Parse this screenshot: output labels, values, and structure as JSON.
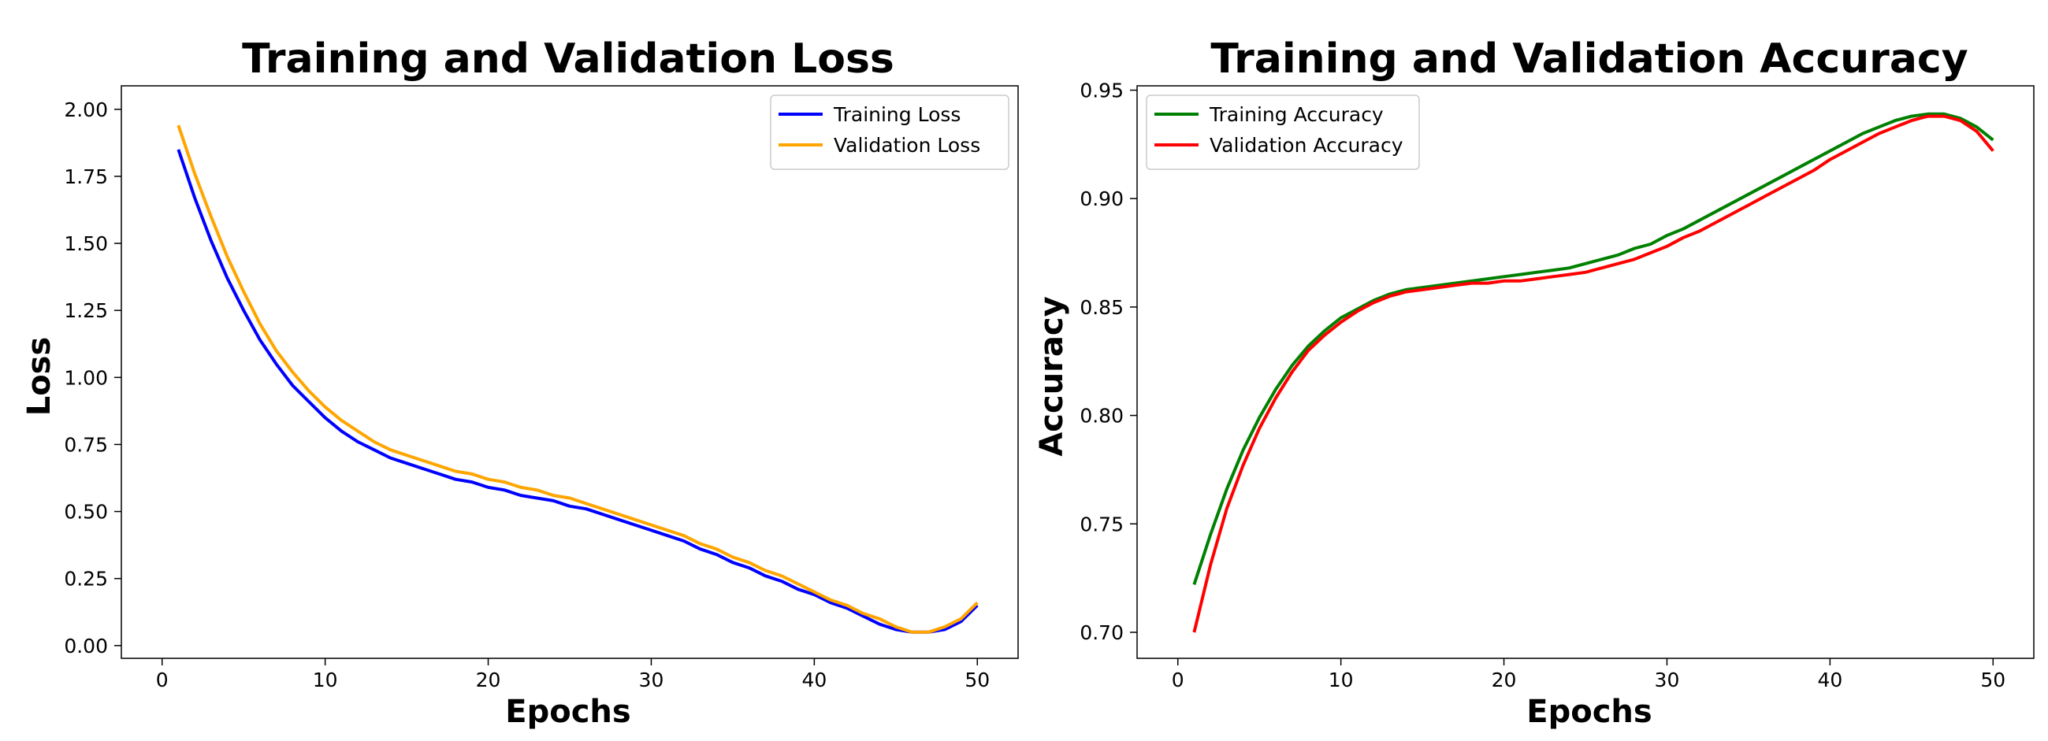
{
  "chart_data": [
    {
      "type": "line",
      "title": "Training and Validation Loss",
      "xlabel": "Epochs",
      "ylabel": "Loss",
      "xlim": [
        -2.5,
        52.5
      ],
      "ylim": [
        -0.0475,
        2.0875
      ],
      "xticks": [
        0,
        10,
        20,
        30,
        40,
        50
      ],
      "yticks": [
        0.0,
        0.25,
        0.5,
        0.75,
        1.0,
        1.25,
        1.5,
        1.75,
        2.0
      ],
      "ytick_labels": [
        "0.00",
        "0.25",
        "0.50",
        "0.75",
        "1.00",
        "1.25",
        "1.50",
        "1.75",
        "2.00"
      ],
      "legend_location": "upper right",
      "grid": false,
      "x": [
        1,
        2,
        3,
        4,
        5,
        6,
        7,
        8,
        9,
        10,
        11,
        12,
        13,
        14,
        15,
        16,
        17,
        18,
        19,
        20,
        21,
        22,
        23,
        24,
        25,
        26,
        27,
        28,
        29,
        30,
        31,
        32,
        33,
        34,
        35,
        36,
        37,
        38,
        39,
        40,
        41,
        42,
        43,
        44,
        45,
        46,
        47,
        48,
        49,
        50
      ],
      "series": [
        {
          "name": "Training Loss",
          "color": "#0000ff",
          "values": [
            1.85,
            1.67,
            1.51,
            1.37,
            1.25,
            1.14,
            1.05,
            0.97,
            0.91,
            0.85,
            0.8,
            0.76,
            0.73,
            0.7,
            0.68,
            0.66,
            0.64,
            0.62,
            0.61,
            0.59,
            0.58,
            0.56,
            0.55,
            0.54,
            0.52,
            0.51,
            0.49,
            0.47,
            0.45,
            0.43,
            0.41,
            0.39,
            0.36,
            0.34,
            0.31,
            0.29,
            0.26,
            0.24,
            0.21,
            0.19,
            0.16,
            0.14,
            0.11,
            0.08,
            0.06,
            0.05,
            0.05,
            0.06,
            0.09,
            0.15
          ]
        },
        {
          "name": "Validation Loss",
          "color": "#ffa500",
          "values": [
            1.94,
            1.76,
            1.6,
            1.45,
            1.32,
            1.2,
            1.1,
            1.02,
            0.95,
            0.89,
            0.84,
            0.8,
            0.76,
            0.73,
            0.71,
            0.69,
            0.67,
            0.65,
            0.64,
            0.62,
            0.61,
            0.59,
            0.58,
            0.56,
            0.55,
            0.53,
            0.51,
            0.49,
            0.47,
            0.45,
            0.43,
            0.41,
            0.38,
            0.36,
            0.33,
            0.31,
            0.28,
            0.26,
            0.23,
            0.2,
            0.17,
            0.15,
            0.12,
            0.1,
            0.07,
            0.05,
            0.05,
            0.07,
            0.1,
            0.16
          ]
        }
      ]
    },
    {
      "type": "line",
      "title": "Training and Validation Accuracy",
      "xlabel": "Epochs",
      "ylabel": "Accuracy",
      "xlim": [
        -2.5,
        52.5
      ],
      "ylim": [
        0.688,
        0.952
      ],
      "xticks": [
        0,
        10,
        20,
        30,
        40,
        50
      ],
      "yticks": [
        0.7,
        0.75,
        0.8,
        0.85,
        0.9,
        0.95
      ],
      "ytick_labels": [
        "0.70",
        "0.75",
        "0.80",
        "0.85",
        "0.90",
        "0.95"
      ],
      "legend_location": "upper left",
      "grid": false,
      "x": [
        1,
        2,
        3,
        4,
        5,
        6,
        7,
        8,
        9,
        10,
        11,
        12,
        13,
        14,
        15,
        16,
        17,
        18,
        19,
        20,
        21,
        22,
        23,
        24,
        25,
        26,
        27,
        28,
        29,
        30,
        31,
        32,
        33,
        34,
        35,
        36,
        37,
        38,
        39,
        40,
        41,
        42,
        43,
        44,
        45,
        46,
        47,
        48,
        49,
        50
      ],
      "series": [
        {
          "name": "Training Accuracy",
          "color": "#008000",
          "values": [
            0.722,
            0.745,
            0.766,
            0.784,
            0.799,
            0.812,
            0.823,
            0.832,
            0.839,
            0.845,
            0.849,
            0.853,
            0.856,
            0.858,
            0.859,
            0.86,
            0.861,
            0.862,
            0.863,
            0.864,
            0.865,
            0.866,
            0.867,
            0.868,
            0.87,
            0.872,
            0.874,
            0.877,
            0.879,
            0.883,
            0.886,
            0.89,
            0.894,
            0.898,
            0.902,
            0.906,
            0.91,
            0.914,
            0.918,
            0.922,
            0.926,
            0.93,
            0.933,
            0.936,
            0.938,
            0.939,
            0.939,
            0.937,
            0.933,
            0.927
          ]
        },
        {
          "name": "Validation Accuracy",
          "color": "#ff0000",
          "values": [
            0.7,
            0.731,
            0.757,
            0.777,
            0.794,
            0.808,
            0.82,
            0.83,
            0.837,
            0.843,
            0.848,
            0.852,
            0.855,
            0.857,
            0.858,
            0.859,
            0.86,
            0.861,
            0.861,
            0.862,
            0.862,
            0.863,
            0.864,
            0.865,
            0.866,
            0.868,
            0.87,
            0.872,
            0.875,
            0.878,
            0.882,
            0.885,
            0.889,
            0.893,
            0.897,
            0.901,
            0.905,
            0.909,
            0.913,
            0.918,
            0.922,
            0.926,
            0.93,
            0.933,
            0.936,
            0.938,
            0.938,
            0.936,
            0.931,
            0.922
          ]
        }
      ]
    }
  ]
}
